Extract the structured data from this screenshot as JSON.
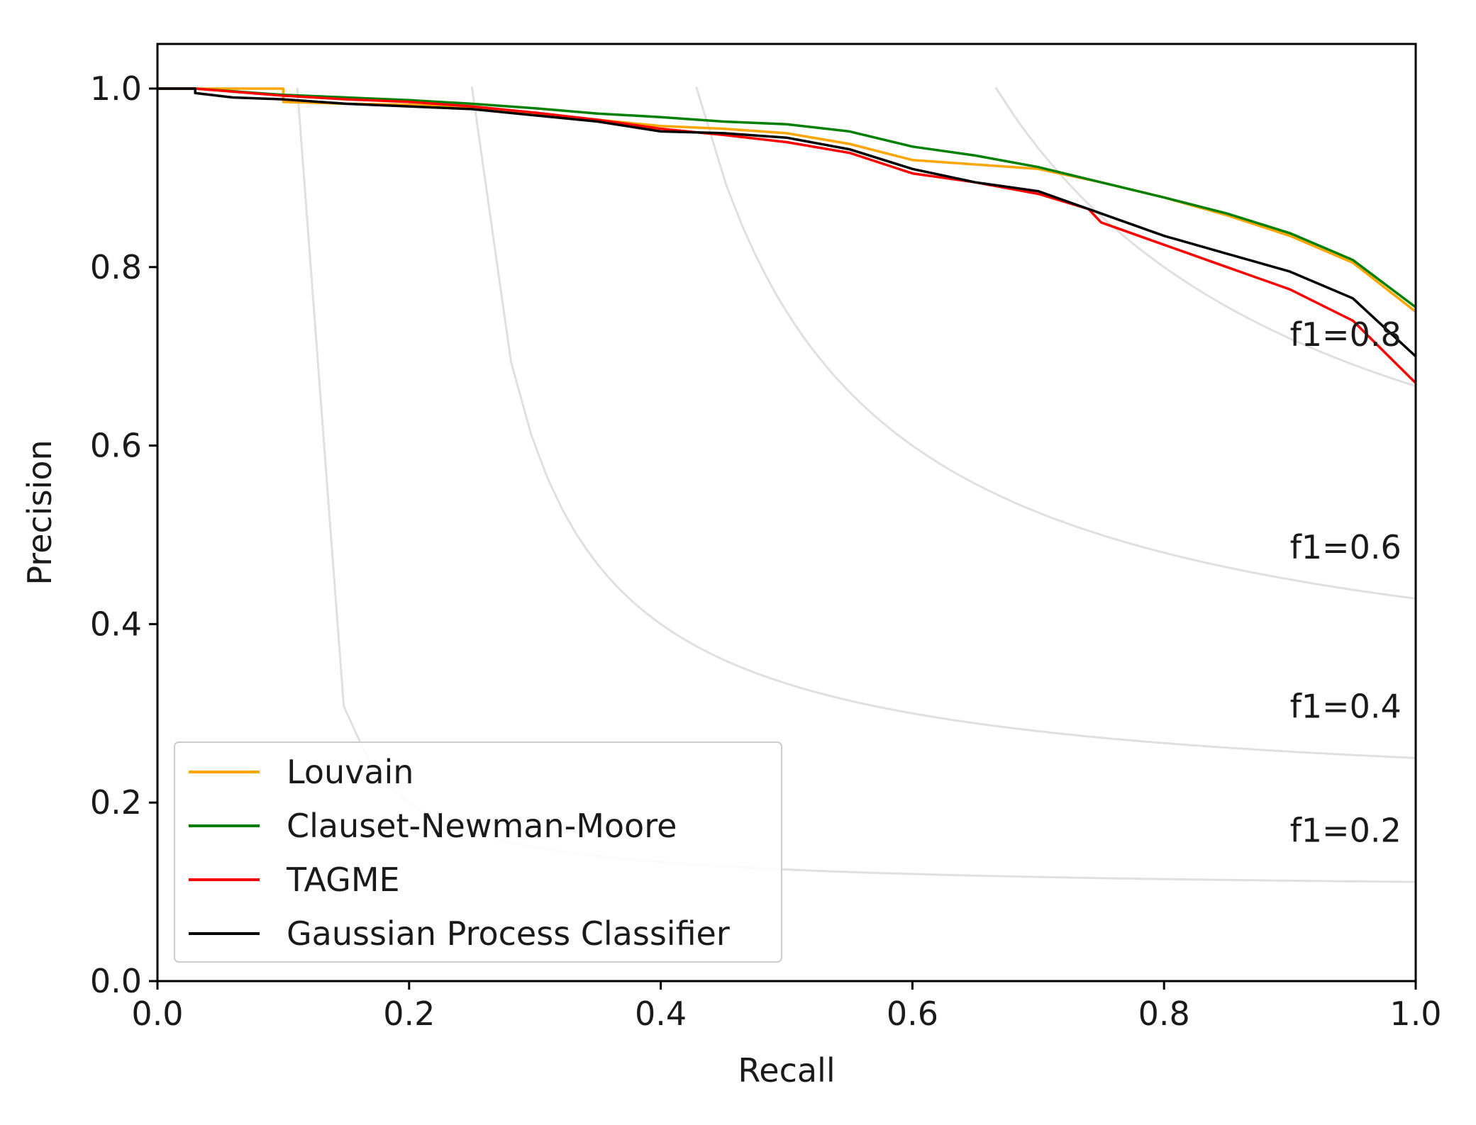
{
  "chart_data": {
    "type": "line",
    "title": "",
    "xlabel": "Recall",
    "ylabel": "Precision",
    "xlim": [
      0.0,
      1.0
    ],
    "ylim": [
      0.0,
      1.05
    ],
    "xticks": [
      "0.0",
      "0.2",
      "0.4",
      "0.6",
      "0.8",
      "1.0"
    ],
    "yticks": [
      "0.0",
      "0.2",
      "0.4",
      "0.6",
      "0.8",
      "1.0"
    ],
    "grid": false,
    "legend_position": "lower-left",
    "iso_f1": [
      {
        "f1": 0.2,
        "label": "f1=0.2"
      },
      {
        "f1": 0.4,
        "label": "f1=0.4"
      },
      {
        "f1": 0.6,
        "label": "f1=0.6"
      },
      {
        "f1": 0.8,
        "label": "f1=0.8"
      }
    ],
    "series": [
      {
        "name": "Louvain",
        "color": "#ffa500",
        "x": [
          0.0,
          0.03,
          0.1,
          0.1,
          0.15,
          0.2,
          0.25,
          0.3,
          0.35,
          0.4,
          0.45,
          0.5,
          0.55,
          0.6,
          0.65,
          0.7,
          0.75,
          0.8,
          0.85,
          0.9,
          0.95,
          1.0
        ],
        "y": [
          1.0,
          1.0,
          1.0,
          0.985,
          0.983,
          0.982,
          0.978,
          0.972,
          0.965,
          0.958,
          0.955,
          0.95,
          0.938,
          0.92,
          0.915,
          0.91,
          0.895,
          0.878,
          0.858,
          0.835,
          0.805,
          0.75
        ]
      },
      {
        "name": "Clauset-Newman-Moore",
        "color": "#008000",
        "x": [
          0.0,
          0.03,
          0.1,
          0.15,
          0.2,
          0.25,
          0.3,
          0.35,
          0.4,
          0.45,
          0.5,
          0.55,
          0.6,
          0.65,
          0.7,
          0.75,
          0.8,
          0.85,
          0.9,
          0.95,
          1.0
        ],
        "y": [
          1.0,
          1.0,
          0.993,
          0.99,
          0.987,
          0.983,
          0.978,
          0.972,
          0.968,
          0.963,
          0.96,
          0.952,
          0.935,
          0.925,
          0.912,
          0.895,
          0.878,
          0.86,
          0.838,
          0.808,
          0.755
        ]
      },
      {
        "name": "TAGME",
        "color": "#ff0000",
        "x": [
          0.0,
          0.03,
          0.1,
          0.15,
          0.2,
          0.25,
          0.3,
          0.35,
          0.4,
          0.45,
          0.5,
          0.55,
          0.6,
          0.65,
          0.7,
          0.74,
          0.75,
          0.8,
          0.85,
          0.9,
          0.95,
          1.0
        ],
        "y": [
          1.0,
          1.0,
          0.992,
          0.988,
          0.985,
          0.98,
          0.973,
          0.965,
          0.955,
          0.948,
          0.94,
          0.928,
          0.905,
          0.895,
          0.882,
          0.865,
          0.85,
          0.825,
          0.8,
          0.775,
          0.74,
          0.67
        ]
      },
      {
        "name": "Gaussian Process Classifier",
        "color": "#000000",
        "x": [
          0.0,
          0.03,
          0.03,
          0.06,
          0.1,
          0.15,
          0.2,
          0.25,
          0.3,
          0.35,
          0.4,
          0.45,
          0.5,
          0.55,
          0.6,
          0.65,
          0.7,
          0.75,
          0.8,
          0.85,
          0.9,
          0.95,
          1.0
        ],
        "y": [
          1.0,
          1.0,
          0.995,
          0.99,
          0.988,
          0.983,
          0.98,
          0.977,
          0.97,
          0.963,
          0.952,
          0.95,
          0.945,
          0.932,
          0.91,
          0.895,
          0.885,
          0.86,
          0.835,
          0.815,
          0.795,
          0.765,
          0.7
        ]
      }
    ]
  }
}
